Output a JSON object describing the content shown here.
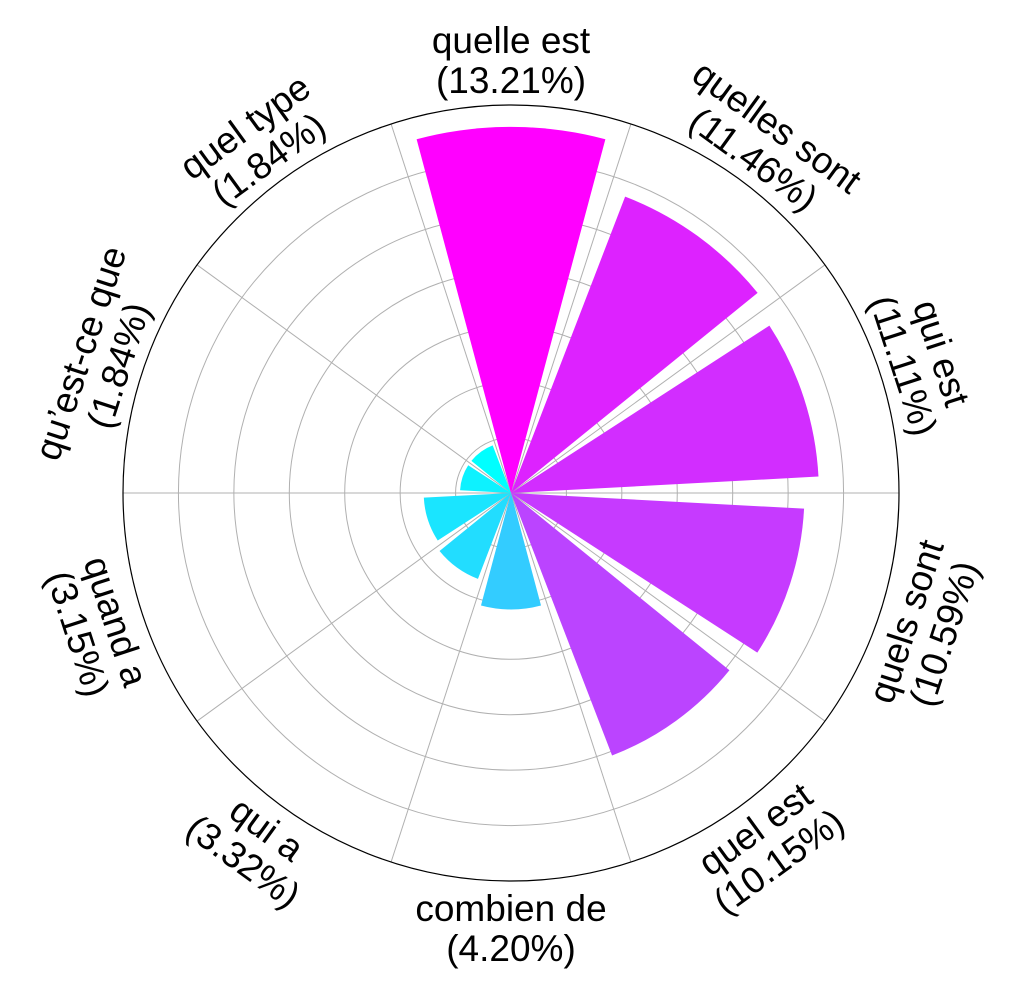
{
  "chart_data": {
    "type": "bar",
    "subtype": "polar",
    "start_angle": "top",
    "direction": "clockwise",
    "categories": [
      {
        "name": "quelle est",
        "percent_label": "(13.21%)",
        "value": 13.21,
        "color": "#ff00ff"
      },
      {
        "name": "quelles sont",
        "percent_label": "(11.46%)",
        "value": 11.46,
        "color": "#dd22ff"
      },
      {
        "name": "qui est",
        "percent_label": "(11.11%)",
        "value": 11.11,
        "color": "#d22dff"
      },
      {
        "name": "quels sont",
        "percent_label": "(10.59%)",
        "value": 10.59,
        "color": "#c63aff"
      },
      {
        "name": "quel est",
        "percent_label": "(10.15%)",
        "value": 10.15,
        "color": "#bb44ff"
      },
      {
        "name": "combien de",
        "percent_label": "(4.20%)",
        "value": 4.2,
        "color": "#33ccff"
      },
      {
        "name": "qui a",
        "percent_label": "(3.32%)",
        "value": 3.32,
        "color": "#22ddff"
      },
      {
        "name": "quand a",
        "percent_label": "(3.15%)",
        "value": 3.15,
        "color": "#1ae5ff"
      },
      {
        "name": "qu’est-ce que",
        "percent_label": "(1.84%)",
        "value": 1.84,
        "color": "#0df2ff"
      },
      {
        "name": "quel type",
        "percent_label": "(1.84%)",
        "value": 1.84,
        "color": "#00ffff"
      }
    ],
    "rmax": 14,
    "rings": 7,
    "grid": true,
    "tick_labels_shown": false
  }
}
